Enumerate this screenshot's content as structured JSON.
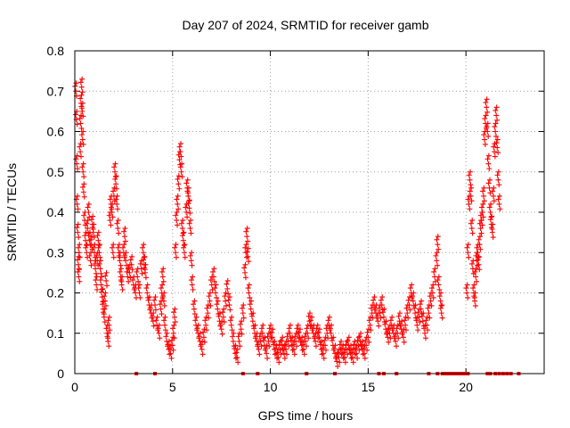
{
  "chart_data": {
    "type": "scatter",
    "title": "Day 207 of 2024, SRMTID for receiver gamb",
    "xlabel": "GPS time / hours",
    "ylabel": "SRMTID / TECUs",
    "xlim": [
      0,
      24
    ],
    "ylim": [
      0,
      0.8
    ],
    "x_ticks": [
      0,
      5,
      10,
      15,
      20
    ],
    "x_tick_labels": [
      "0",
      "5",
      "10",
      "15",
      "20"
    ],
    "y_ticks": [
      0,
      0.1,
      0.2,
      0.3,
      0.4,
      0.5,
      0.6,
      0.7,
      0.8
    ],
    "y_tick_labels": [
      "0",
      "0.1",
      "0.2",
      "0.3",
      "0.4",
      "0.5",
      "0.6",
      "0.7",
      "0.8"
    ],
    "grid": true,
    "marker": "+",
    "color": "#ff0000",
    "series": [
      {
        "name": "SRMTID",
        "points": [
          [
            0.05,
            0.7
          ],
          [
            0.08,
            0.63
          ],
          [
            0.1,
            0.52
          ],
          [
            0.12,
            0.42
          ],
          [
            0.15,
            0.35
          ],
          [
            0.18,
            0.27
          ],
          [
            0.2,
            0.24
          ],
          [
            0.22,
            0.3
          ],
          [
            0.28,
            0.55
          ],
          [
            0.3,
            0.62
          ],
          [
            0.32,
            0.67
          ],
          [
            0.35,
            0.71
          ],
          [
            0.38,
            0.65
          ],
          [
            0.4,
            0.58
          ],
          [
            0.42,
            0.5
          ],
          [
            0.45,
            0.45
          ],
          [
            0.5,
            0.38
          ],
          [
            0.55,
            0.33
          ],
          [
            0.6,
            0.3
          ],
          [
            0.65,
            0.36
          ],
          [
            0.7,
            0.4
          ],
          [
            0.75,
            0.33
          ],
          [
            0.8,
            0.28
          ],
          [
            0.85,
            0.32
          ],
          [
            0.9,
            0.37
          ],
          [
            0.95,
            0.35
          ],
          [
            1.0,
            0.3
          ],
          [
            1.05,
            0.26
          ],
          [
            1.1,
            0.22
          ],
          [
            1.15,
            0.28
          ],
          [
            1.2,
            0.33
          ],
          [
            1.25,
            0.3
          ],
          [
            1.3,
            0.26
          ],
          [
            1.35,
            0.22
          ],
          [
            1.4,
            0.19
          ],
          [
            1.45,
            0.16
          ],
          [
            1.5,
            0.14
          ],
          [
            1.55,
            0.18
          ],
          [
            1.6,
            0.23
          ],
          [
            1.65,
            0.1
          ],
          [
            1.7,
            0.08
          ],
          [
            1.75,
            0.12
          ],
          [
            1.8,
            0.38
          ],
          [
            1.85,
            0.42
          ],
          [
            1.9,
            0.4
          ],
          [
            1.95,
            0.3
          ],
          [
            2.0,
            0.44
          ],
          [
            2.05,
            0.5
          ],
          [
            2.1,
            0.47
          ],
          [
            2.15,
            0.42
          ],
          [
            2.2,
            0.36
          ],
          [
            2.25,
            0.3
          ],
          [
            2.3,
            0.28
          ],
          [
            2.35,
            0.24
          ],
          [
            2.4,
            0.22
          ],
          [
            2.5,
            0.3
          ],
          [
            2.55,
            0.34
          ],
          [
            2.6,
            0.28
          ],
          [
            2.7,
            0.24
          ],
          [
            2.8,
            0.25
          ],
          [
            2.9,
            0.27
          ],
          [
            3.0,
            0.22
          ],
          [
            3.1,
            0.2
          ],
          [
            3.2,
            0.24
          ],
          [
            3.3,
            0.2
          ],
          [
            3.4,
            0.26
          ],
          [
            3.5,
            0.3
          ],
          [
            3.55,
            0.27
          ],
          [
            3.6,
            0.25
          ],
          [
            3.7,
            0.2
          ],
          [
            3.8,
            0.17
          ],
          [
            3.9,
            0.15
          ],
          [
            4.0,
            0.13
          ],
          [
            4.1,
            0.17
          ],
          [
            4.2,
            0.12
          ],
          [
            4.3,
            0.1
          ],
          [
            4.4,
            0.16
          ],
          [
            4.45,
            0.2
          ],
          [
            4.5,
            0.24
          ],
          [
            4.55,
            0.18
          ],
          [
            4.6,
            0.12
          ],
          [
            4.7,
            0.08
          ],
          [
            4.8,
            0.06
          ],
          [
            4.9,
            0.05
          ],
          [
            5.0,
            0.07
          ],
          [
            5.05,
            0.1
          ],
          [
            5.1,
            0.14
          ],
          [
            5.15,
            0.3
          ],
          [
            5.2,
            0.38
          ],
          [
            5.25,
            0.42
          ],
          [
            5.3,
            0.47
          ],
          [
            5.35,
            0.53
          ],
          [
            5.4,
            0.55
          ],
          [
            5.45,
            0.5
          ],
          [
            5.5,
            0.36
          ],
          [
            5.55,
            0.33
          ],
          [
            5.6,
            0.3
          ],
          [
            5.7,
            0.4
          ],
          [
            5.75,
            0.46
          ],
          [
            5.8,
            0.44
          ],
          [
            5.85,
            0.41
          ],
          [
            5.9,
            0.36
          ],
          [
            5.95,
            0.28
          ],
          [
            6.0,
            0.22
          ],
          [
            6.1,
            0.16
          ],
          [
            6.2,
            0.12
          ],
          [
            6.3,
            0.1
          ],
          [
            6.4,
            0.08
          ],
          [
            6.5,
            0.06
          ],
          [
            6.6,
            0.09
          ],
          [
            6.7,
            0.12
          ],
          [
            6.8,
            0.15
          ],
          [
            6.9,
            0.18
          ],
          [
            7.0,
            0.22
          ],
          [
            7.1,
            0.24
          ],
          [
            7.2,
            0.2
          ],
          [
            7.3,
            0.16
          ],
          [
            7.4,
            0.13
          ],
          [
            7.5,
            0.11
          ],
          [
            7.6,
            0.14
          ],
          [
            7.7,
            0.18
          ],
          [
            7.8,
            0.21
          ],
          [
            7.9,
            0.17
          ],
          [
            8.0,
            0.12
          ],
          [
            8.1,
            0.08
          ],
          [
            8.2,
            0.05
          ],
          [
            8.3,
            0.04
          ],
          [
            8.4,
            0.08
          ],
          [
            8.5,
            0.11
          ],
          [
            8.6,
            0.15
          ],
          [
            8.7,
            0.25
          ],
          [
            8.75,
            0.3
          ],
          [
            8.8,
            0.34
          ],
          [
            8.85,
            0.29
          ],
          [
            8.9,
            0.2
          ],
          [
            9.0,
            0.16
          ],
          [
            9.1,
            0.13
          ],
          [
            9.2,
            0.1
          ],
          [
            9.3,
            0.08
          ],
          [
            9.4,
            0.06
          ],
          [
            9.5,
            0.08
          ],
          [
            9.6,
            0.1
          ],
          [
            9.7,
            0.07
          ],
          [
            9.8,
            0.05
          ],
          [
            9.9,
            0.08
          ],
          [
            10.0,
            0.1
          ],
          [
            10.1,
            0.09
          ],
          [
            10.2,
            0.06
          ],
          [
            10.3,
            0.05
          ],
          [
            10.4,
            0.04
          ],
          [
            10.5,
            0.06
          ],
          [
            10.6,
            0.07
          ],
          [
            10.7,
            0.05
          ],
          [
            10.8,
            0.06
          ],
          [
            10.9,
            0.08
          ],
          [
            11.0,
            0.1
          ],
          [
            11.1,
            0.07
          ],
          [
            11.2,
            0.06
          ],
          [
            11.3,
            0.08
          ],
          [
            11.4,
            0.1
          ],
          [
            11.5,
            0.09
          ],
          [
            11.6,
            0.07
          ],
          [
            11.7,
            0.06
          ],
          [
            11.8,
            0.08
          ],
          [
            11.9,
            0.1
          ],
          [
            12.0,
            0.13
          ],
          [
            12.1,
            0.12
          ],
          [
            12.2,
            0.1
          ],
          [
            12.3,
            0.08
          ],
          [
            12.4,
            0.1
          ],
          [
            12.5,
            0.09
          ],
          [
            12.6,
            0.06
          ],
          [
            12.7,
            0.05
          ],
          [
            12.8,
            0.07
          ],
          [
            12.9,
            0.1
          ],
          [
            13.0,
            0.12
          ],
          [
            13.1,
            0.1
          ],
          [
            13.2,
            0.07
          ],
          [
            13.3,
            0.05
          ],
          [
            13.4,
            0.03
          ],
          [
            13.5,
            0.04
          ],
          [
            13.6,
            0.06
          ],
          [
            13.7,
            0.05
          ],
          [
            13.8,
            0.04
          ],
          [
            13.9,
            0.06
          ],
          [
            14.0,
            0.07
          ],
          [
            14.1,
            0.05
          ],
          [
            14.2,
            0.04
          ],
          [
            14.3,
            0.06
          ],
          [
            14.4,
            0.05
          ],
          [
            14.5,
            0.07
          ],
          [
            14.6,
            0.08
          ],
          [
            14.7,
            0.06
          ],
          [
            14.8,
            0.05
          ],
          [
            14.9,
            0.07
          ],
          [
            15.0,
            0.09
          ],
          [
            15.1,
            0.12
          ],
          [
            15.2,
            0.15
          ],
          [
            15.3,
            0.17
          ],
          [
            15.4,
            0.15
          ],
          [
            15.5,
            0.13
          ],
          [
            15.6,
            0.15
          ],
          [
            15.7,
            0.17
          ],
          [
            15.8,
            0.14
          ],
          [
            15.9,
            0.11
          ],
          [
            16.0,
            0.09
          ],
          [
            16.1,
            0.1
          ],
          [
            16.2,
            0.12
          ],
          [
            16.3,
            0.1
          ],
          [
            16.4,
            0.08
          ],
          [
            16.5,
            0.1
          ],
          [
            16.6,
            0.13
          ],
          [
            16.7,
            0.11
          ],
          [
            16.8,
            0.09
          ],
          [
            16.9,
            0.12
          ],
          [
            17.0,
            0.15
          ],
          [
            17.1,
            0.17
          ],
          [
            17.2,
            0.2
          ],
          [
            17.3,
            0.18
          ],
          [
            17.4,
            0.15
          ],
          [
            17.5,
            0.12
          ],
          [
            17.6,
            0.14
          ],
          [
            17.7,
            0.16
          ],
          [
            17.8,
            0.13
          ],
          [
            17.9,
            0.1
          ],
          [
            18.0,
            0.12
          ],
          [
            18.1,
            0.15
          ],
          [
            18.2,
            0.18
          ],
          [
            18.3,
            0.2
          ],
          [
            18.4,
            0.24
          ],
          [
            18.5,
            0.28
          ],
          [
            18.55,
            0.32
          ],
          [
            18.6,
            0.22
          ],
          [
            18.7,
            0.18
          ],
          [
            18.75,
            0.15
          ],
          [
            20.05,
            0.2
          ],
          [
            20.1,
            0.3
          ],
          [
            20.15,
            0.42
          ],
          [
            20.2,
            0.48
          ],
          [
            20.25,
            0.44
          ],
          [
            20.3,
            0.36
          ],
          [
            20.35,
            0.26
          ],
          [
            20.4,
            0.2
          ],
          [
            20.45,
            0.18
          ],
          [
            20.5,
            0.24
          ],
          [
            20.55,
            0.28
          ],
          [
            20.6,
            0.3
          ],
          [
            20.65,
            0.27
          ],
          [
            20.7,
            0.32
          ],
          [
            20.75,
            0.36
          ],
          [
            20.8,
            0.38
          ],
          [
            20.85,
            0.4
          ],
          [
            20.9,
            0.44
          ],
          [
            20.95,
            0.58
          ],
          [
            21.0,
            0.62
          ],
          [
            21.05,
            0.66
          ],
          [
            21.1,
            0.6
          ],
          [
            21.15,
            0.52
          ],
          [
            21.2,
            0.46
          ],
          [
            21.25,
            0.4
          ],
          [
            21.3,
            0.37
          ],
          [
            21.35,
            0.35
          ],
          [
            21.4,
            0.44
          ],
          [
            21.45,
            0.55
          ],
          [
            21.5,
            0.6
          ],
          [
            21.55,
            0.64
          ],
          [
            21.6,
            0.56
          ],
          [
            21.65,
            0.48
          ],
          [
            21.7,
            0.42
          ]
        ]
      }
    ],
    "zero_points_x": [
      3.15,
      4.1,
      8.6,
      9.35,
      11.85,
      13.3,
      15.55,
      15.8,
      16.45,
      18.1,
      18.55,
      18.8,
      18.95,
      19.1,
      19.25,
      19.4,
      19.55,
      19.7,
      19.85,
      20.0,
      20.1,
      21.1,
      21.25,
      21.5,
      21.7,
      21.9,
      22.1,
      22.3,
      22.7
    ]
  }
}
